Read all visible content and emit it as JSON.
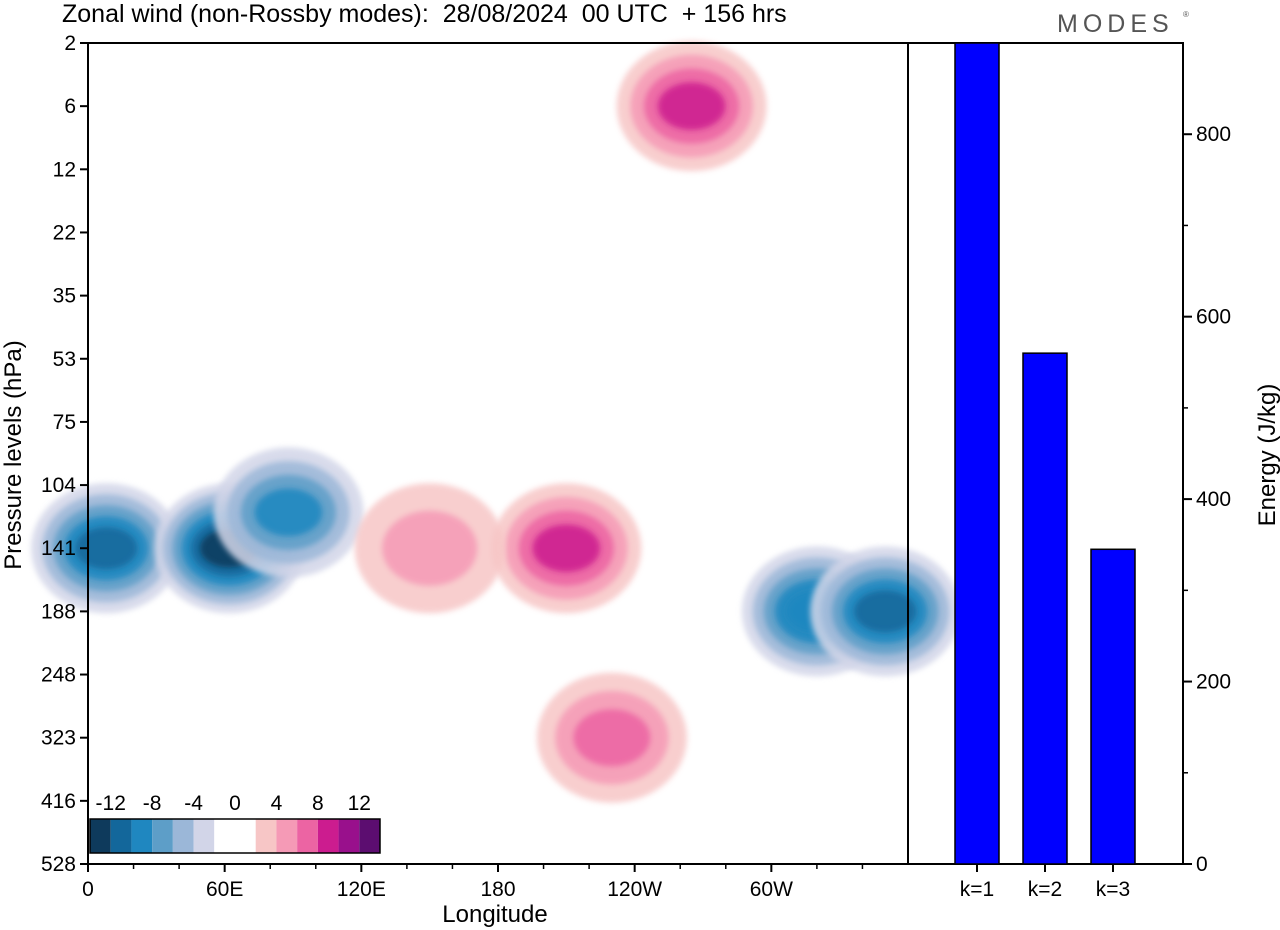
{
  "header": {
    "title": "Zonal wind (non-Rossby modes):  28/08/2024  00 UTC  + 156 hrs",
    "brand": "MODES",
    "brand_mark": "®"
  },
  "colors": {
    "bar_fill": "#0000ff",
    "frame": "#000000",
    "colorbar": [
      "#0e3a5c",
      "#13679b",
      "#1f87c0",
      "#5d9ec8",
      "#9bb7d8",
      "#d2d5e8",
      "#ffffff",
      "#ffffff",
      "#f7c6c6",
      "#f59ab6",
      "#ec64a3",
      "#cc1c8f",
      "#99108c",
      "#5c0d70"
    ]
  },
  "chart_data": [
    {
      "type": "heatmap",
      "xlabel": "Longitude",
      "ylabel": "Pressure levels (hPa)",
      "xticks": [
        "0",
        "60E",
        "120E",
        "180",
        "120W",
        "60W"
      ],
      "xtick_values": [
        0,
        60,
        120,
        180,
        240,
        300
      ],
      "xlim": [
        0,
        360
      ],
      "yticks": [
        "2",
        "6",
        "12",
        "22",
        "35",
        "53",
        "75",
        "104",
        "141",
        "188",
        "248",
        "323",
        "416",
        "528"
      ],
      "colorbar_labels": [
        "-12",
        "-8",
        "-4",
        "0",
        "4",
        "8",
        "12"
      ],
      "colorbar_values": [
        -12,
        -8,
        -4,
        0,
        4,
        8,
        12
      ],
      "features": [
        {
          "lon": 8,
          "level": "141",
          "value": -10
        },
        {
          "lon": 62,
          "level": "141",
          "value": -12
        },
        {
          "lon": 88,
          "level": "120",
          "value": -8
        },
        {
          "lon": 320,
          "level": "188",
          "value": -9
        },
        {
          "lon": 350,
          "level": "188",
          "value": -10
        },
        {
          "lon": 210,
          "level": "141",
          "value": 8
        },
        {
          "lon": 265,
          "level": "6",
          "value": 7
        },
        {
          "lon": 150,
          "level": "141",
          "value": 4
        },
        {
          "lon": 230,
          "level": "323",
          "value": 5
        }
      ]
    },
    {
      "type": "bar",
      "categories": [
        "k=1",
        "k=2",
        "k=3"
      ],
      "values": [
        900,
        560,
        345
      ],
      "ylabel": "Energy (J/kg)",
      "ylim": [
        0,
        900
      ],
      "yticks": [
        0,
        200,
        400,
        600,
        800
      ]
    }
  ]
}
